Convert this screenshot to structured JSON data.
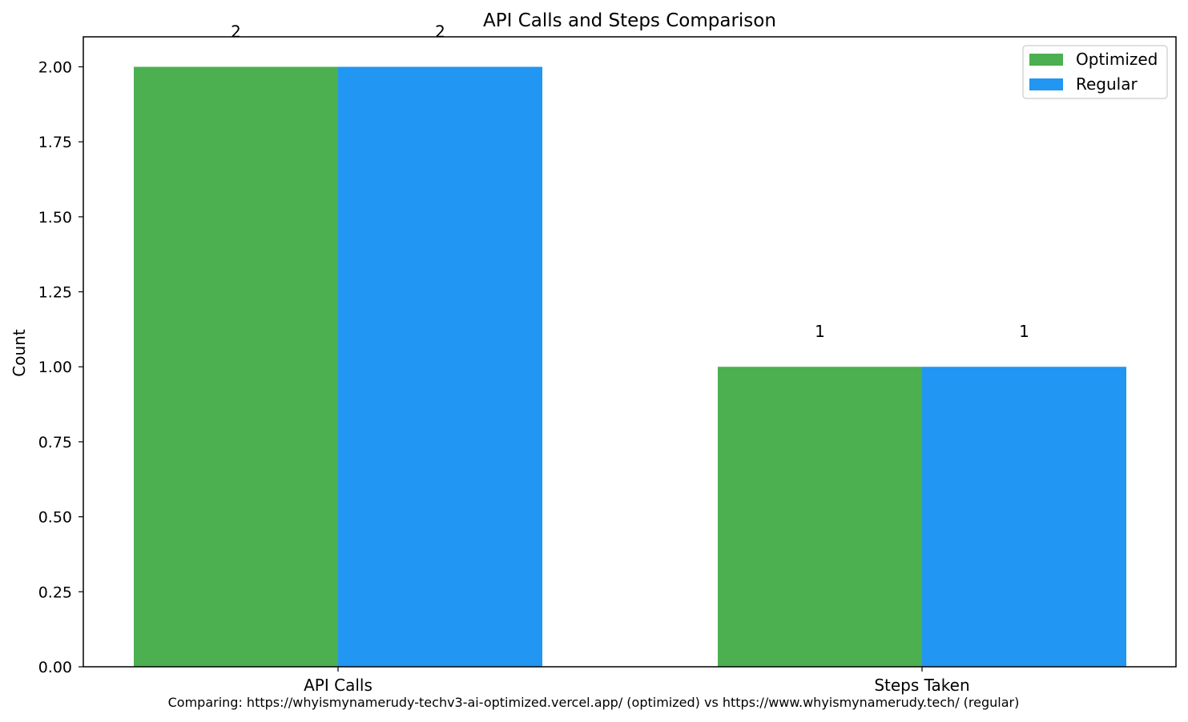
{
  "chart_data": {
    "type": "bar",
    "title": "API Calls and Steps Comparison",
    "xlabel": "",
    "ylabel": "Count",
    "categories": [
      "API Calls",
      "Steps Taken"
    ],
    "series": [
      {
        "name": "Optimized",
        "values": [
          2,
          1
        ],
        "color": "#4CAF50",
        "labels": [
          "2",
          "1"
        ]
      },
      {
        "name": "Regular",
        "values": [
          2,
          1
        ],
        "color": "#2196F3",
        "labels": [
          "2",
          "1"
        ]
      }
    ],
    "ylim": [
      0,
      2.1
    ],
    "yticks": [
      "0.00",
      "0.25",
      "0.50",
      "0.75",
      "1.00",
      "1.25",
      "1.50",
      "1.75",
      "2.00"
    ],
    "grid": false,
    "legend_position": "top-right",
    "footnote": "Comparing: https://whyismynamerudy-techv3-ai-optimized.vercel.app/ (optimized) vs https://www.whyismynamerudy.tech/ (regular)"
  }
}
